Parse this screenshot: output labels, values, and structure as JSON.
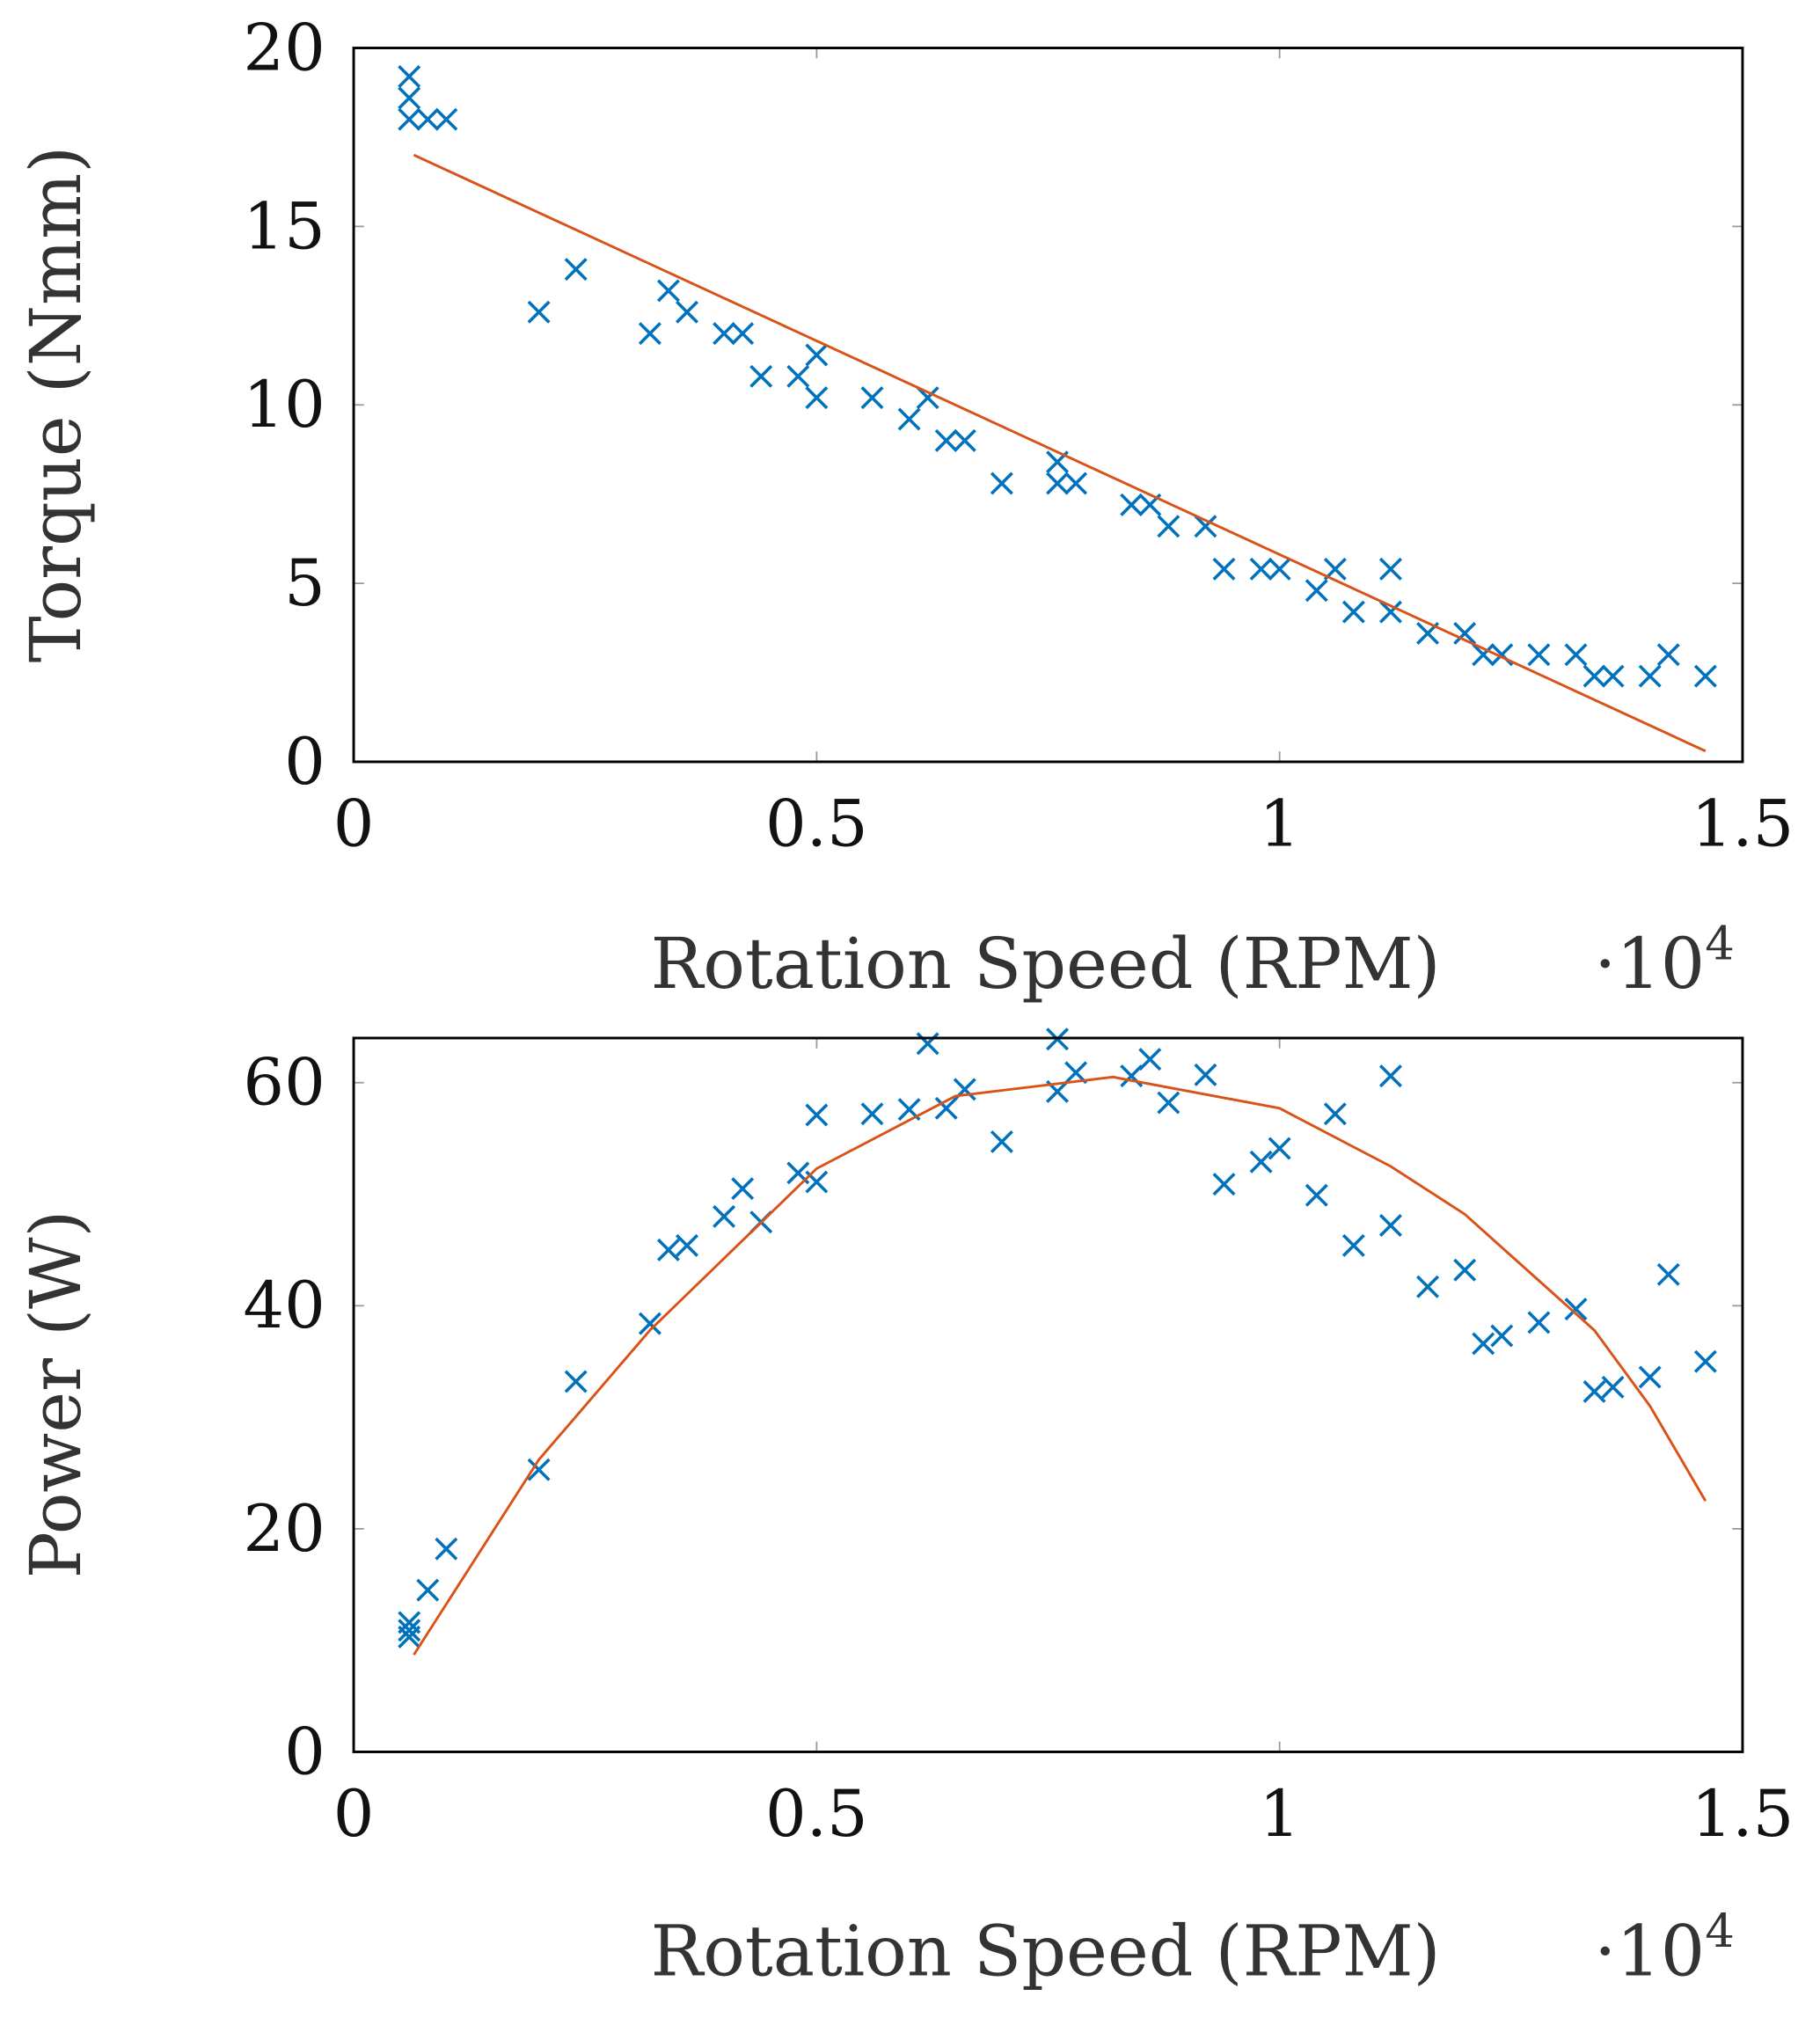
{
  "chart_data": [
    {
      "type": "scatter",
      "title": "",
      "xlabel": "Rotation Speed (RPM)",
      "ylabel": "Torque (Nmm)",
      "x_multiplier_label": "·10",
      "x_multiplier_exp": "4",
      "xlim": [
        0,
        15000
      ],
      "ylim": [
        0,
        20
      ],
      "xticks": [
        0,
        5000,
        10000,
        15000
      ],
      "xtick_labels": [
        "0",
        "0.5",
        "1",
        "1.5"
      ],
      "yticks": [
        0,
        5,
        10,
        15,
        20
      ],
      "ytick_labels": [
        "0",
        "5",
        "10",
        "15",
        "20"
      ],
      "grid": false,
      "colors": {
        "points": "#0072BD",
        "fit": "#D95319"
      },
      "series": [
        {
          "kind": "scatter",
          "marker": "x",
          "x": [
            600,
            600,
            600,
            800,
            1000,
            2000,
            2400,
            3200,
            3400,
            3600,
            4000,
            4200,
            4400,
            4800,
            5000,
            5000,
            5600,
            6000,
            6200,
            6400,
            6600,
            7000,
            7600,
            7600,
            7800,
            8400,
            8600,
            8800,
            9200,
            9400,
            9800,
            10000,
            10400,
            10600,
            10800,
            11200,
            11200,
            11600,
            12000,
            12200,
            12400,
            12800,
            13200,
            13400,
            13600,
            14000,
            14200,
            14600
          ],
          "y": [
            19.2,
            18.6,
            18.0,
            18.0,
            18.0,
            12.6,
            13.8,
            12.0,
            13.2,
            12.6,
            12.0,
            12.0,
            10.8,
            10.8,
            10.2,
            11.4,
            10.2,
            9.6,
            10.2,
            9.0,
            9.0,
            7.8,
            8.4,
            7.8,
            7.8,
            7.2,
            7.2,
            6.6,
            6.6,
            5.4,
            5.4,
            5.4,
            4.8,
            5.4,
            4.2,
            4.2,
            5.4,
            3.6,
            3.6,
            3.0,
            3.0,
            3.0,
            3.0,
            2.4,
            2.4,
            2.4,
            3.0,
            2.4
          ]
        },
        {
          "kind": "line",
          "x": [
            650,
            14600
          ],
          "y": [
            17.0,
            0.3
          ]
        }
      ]
    },
    {
      "type": "scatter",
      "title": "",
      "xlabel": "Rotation Speed (RPM)",
      "ylabel": "Power (W)",
      "x_multiplier_label": "·10",
      "x_multiplier_exp": "4",
      "xlim": [
        0,
        15000
      ],
      "ylim": [
        0,
        64
      ],
      "xticks": [
        0,
        5000,
        10000,
        15000
      ],
      "xtick_labels": [
        "0",
        "0.5",
        "1",
        "1.5"
      ],
      "yticks": [
        0,
        20,
        40,
        60
      ],
      "ytick_labels": [
        "0",
        "20",
        "40",
        "60"
      ],
      "grid": false,
      "colors": {
        "points": "#0072BD",
        "fit": "#D95319"
      },
      "series": [
        {
          "kind": "scatter",
          "marker": "x",
          "x": [
            600,
            600,
            600,
            800,
            1000,
            2000,
            2400,
            3200,
            3400,
            3600,
            4000,
            4200,
            4400,
            4800,
            5000,
            5000,
            5600,
            6000,
            6200,
            6400,
            6600,
            7000,
            7600,
            7600,
            7800,
            8400,
            8600,
            8800,
            9200,
            9400,
            9800,
            10000,
            10400,
            10600,
            10800,
            11200,
            11200,
            11600,
            12000,
            12200,
            12400,
            12800,
            13200,
            13400,
            13600,
            14000,
            14200,
            14600
          ],
          "y": [
            11.6,
            10.9,
            10.3,
            14.5,
            18.2,
            25.3,
            33.2,
            38.4,
            45.0,
            45.4,
            48.0,
            50.5,
            47.5,
            51.9,
            57.1,
            51.1,
            57.2,
            57.6,
            63.5,
            57.7,
            59.4,
            54.7,
            63.9,
            59.2,
            60.9,
            60.6,
            62.1,
            58.2,
            60.7,
            50.9,
            52.9,
            54.1,
            49.9,
            57.2,
            45.4,
            47.2,
            60.6,
            41.7,
            43.2,
            36.6,
            37.3,
            38.5,
            39.7,
            32.3,
            32.7,
            33.6,
            42.8,
            35.0
          ]
        },
        {
          "kind": "line",
          "x": [
            650,
            2000,
            3200,
            5000,
            6500,
            8200,
            10000,
            11200,
            12000,
            13400,
            14000,
            14600
          ],
          "y": [
            8.7,
            26.2,
            37.8,
            52.3,
            58.8,
            60.5,
            57.7,
            52.5,
            48.2,
            37.8,
            31.0,
            22.5
          ]
        }
      ]
    }
  ]
}
